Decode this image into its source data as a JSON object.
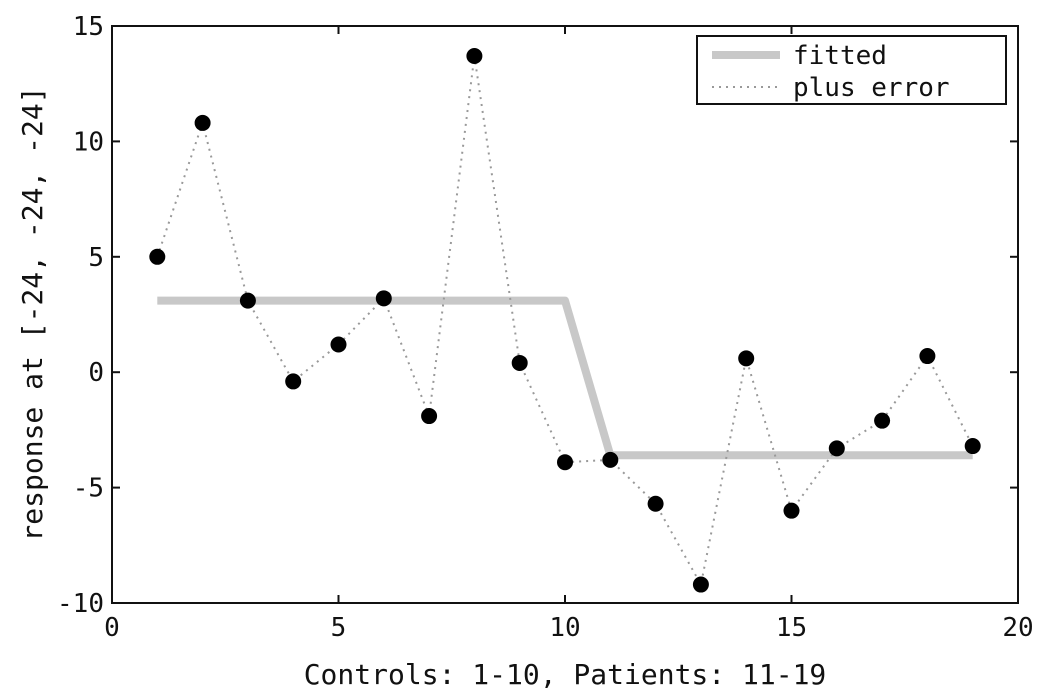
{
  "chart_data": {
    "type": "line",
    "xlabel": "Controls: 1-10, Patients: 11-19",
    "ylabel": "response at [-24, -24, -24]",
    "xlim": [
      0,
      20
    ],
    "ylim": [
      -10,
      15
    ],
    "xticks": [
      0,
      5,
      10,
      15,
      20
    ],
    "yticks": [
      -10,
      -5,
      0,
      5,
      10,
      15
    ],
    "grid": false,
    "legend_position": "top-right",
    "series": [
      {
        "name": "fitted",
        "style": "thick-solid",
        "color": "#c8c8c8",
        "x": [
          1,
          2,
          3,
          4,
          5,
          6,
          7,
          8,
          9,
          10,
          11,
          12,
          13,
          14,
          15,
          16,
          17,
          18,
          19
        ],
        "y": [
          3.1,
          3.1,
          3.1,
          3.1,
          3.1,
          3.1,
          3.1,
          3.1,
          3.1,
          3.1,
          -3.6,
          -3.6,
          -3.6,
          -3.6,
          -3.6,
          -3.6,
          -3.6,
          -3.6,
          -3.6
        ]
      },
      {
        "name": "plus error",
        "style": "dotted-with-markers",
        "color": "#999999",
        "marker_color": "#000000",
        "x": [
          1,
          2,
          3,
          4,
          5,
          6,
          7,
          8,
          9,
          10,
          11,
          12,
          13,
          14,
          15,
          16,
          17,
          18,
          19
        ],
        "y": [
          5.0,
          10.8,
          3.1,
          -0.4,
          1.2,
          3.2,
          -1.9,
          13.7,
          0.4,
          -3.9,
          -3.8,
          -5.7,
          -9.2,
          0.6,
          -6.0,
          -3.3,
          -2.1,
          0.7,
          -3.2
        ]
      }
    ]
  }
}
